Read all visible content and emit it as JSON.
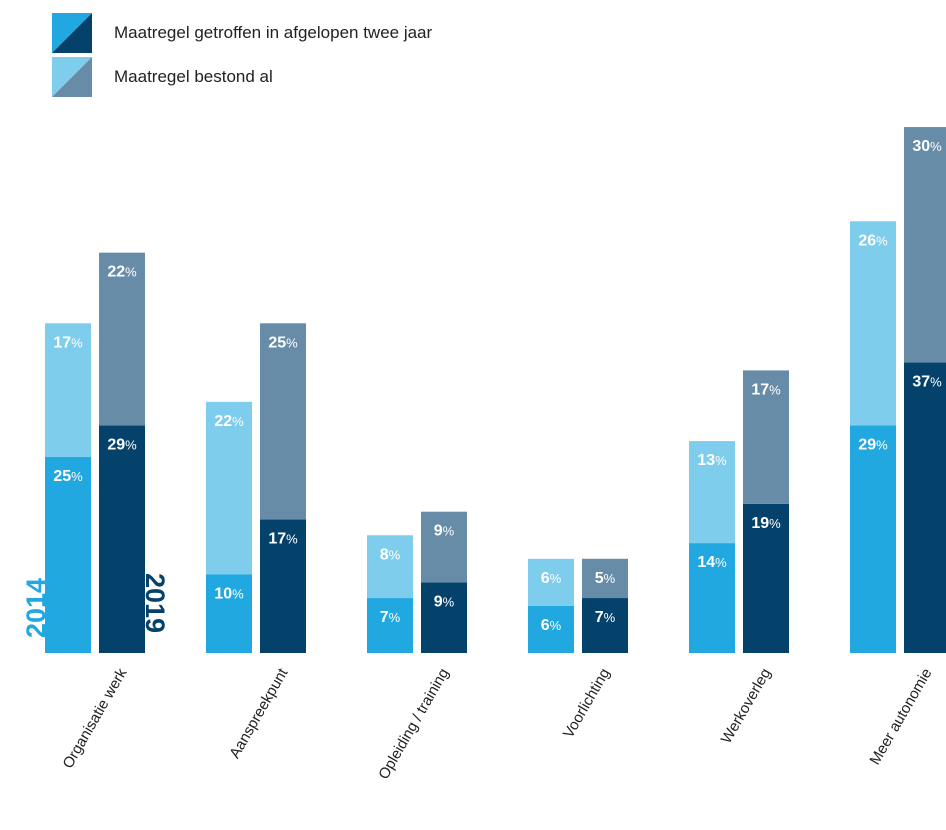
{
  "legend": {
    "items": [
      {
        "label": "Maatregel getroffen in afgelopen twee jaar",
        "color_a": "#22a8e0",
        "color_b": "#05426b"
      },
      {
        "label": "Maatregel bestond al",
        "color_a": "#7fcdec",
        "color_b": "#678ca8"
      }
    ]
  },
  "chart_data": {
    "type": "bar",
    "stacked": true,
    "unit": "%",
    "categories": [
      "Organisatie werk",
      "Aanspreekpunt",
      "Opleiding / training",
      "Voorlichting",
      "Werkoverleg",
      "Meer autonomie"
    ],
    "years": [
      "2014",
      "2019"
    ],
    "series": [
      {
        "name": "Maatregel getroffen in afgelopen twee jaar",
        "year": "2014",
        "color": "#22a8e0",
        "values": [
          25,
          10,
          7,
          6,
          14,
          29
        ]
      },
      {
        "name": "Maatregel bestond al",
        "year": "2014",
        "color": "#7fcdec",
        "values": [
          17,
          22,
          8,
          6,
          13,
          26
        ]
      },
      {
        "name": "Maatregel getroffen in afgelopen twee jaar",
        "year": "2019",
        "color": "#05426b",
        "values": [
          29,
          17,
          9,
          7,
          19,
          37
        ]
      },
      {
        "name": "Maatregel bestond al",
        "year": "2019",
        "color": "#678ca8",
        "values": [
          22,
          25,
          9,
          5,
          17,
          30
        ]
      }
    ],
    "year_label_colors": {
      "2014": "#22a8e0",
      "2019": "#05426b"
    }
  }
}
